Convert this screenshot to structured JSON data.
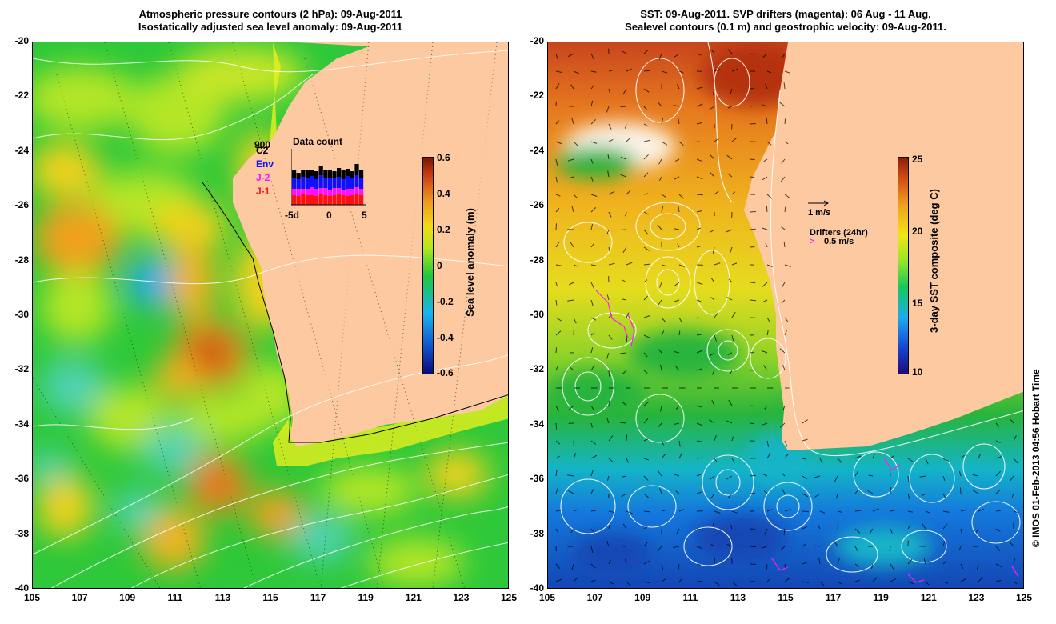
{
  "left_panel": {
    "title_line1": "Atmospheric pressure contours (2 hPa): 09-Aug-2011",
    "title_line2": "Isostatically adjusted sea level anomaly: 09-Aug-2011",
    "colorbar": {
      "label": "Sea level anomaly (m)",
      "range": [
        -0.6,
        0.6
      ],
      "ticks": [
        "0.6",
        "0.4",
        "0.2",
        "0",
        "-0.2",
        "-0.4",
        "-0.6"
      ]
    },
    "data_count": {
      "title": "Data count",
      "missions": [
        {
          "name": "C2",
          "overlap_label": "900",
          "color": "#000000"
        },
        {
          "name": "Env",
          "color": "#1010ff"
        },
        {
          "name": "J-2",
          "color": "#ff10ff"
        },
        {
          "name": "J-1",
          "color": "#ff1010"
        }
      ],
      "x_ticks": [
        "-5d",
        "0",
        "5"
      ]
    }
  },
  "right_panel": {
    "title_line1": "SST: 09-Aug-2011. SVP drifters (magenta): 06 Aug - 11 Aug.",
    "title_line2": "Sealevel contours (0.1 m) and geostrophic velocity: 09-Aug-2011.",
    "velocity_scale_label": "1 m/s",
    "drifters_title": "Drifters (24hr)",
    "drifters_scale_label": "0.5 m/s",
    "colorbar": {
      "label": "3-day SST composite (deg C)",
      "range": [
        10,
        25
      ],
      "ticks": [
        "25",
        "20",
        "15",
        "10"
      ]
    }
  },
  "axes": {
    "x_ticks": [
      "105",
      "107",
      "109",
      "111",
      "113",
      "115",
      "117",
      "119",
      "121",
      "123",
      "125"
    ],
    "y_ticks": [
      "-20",
      "-22",
      "-24",
      "-26",
      "-28",
      "-30",
      "-32",
      "-34",
      "-36",
      "-38",
      "-40"
    ],
    "lon_range": [
      105,
      125
    ],
    "lat_range": [
      -40,
      -20
    ]
  },
  "colors": {
    "land": "#fcc9a0",
    "contour": "#ffffff"
  },
  "credit": "© IMOS 01-Feb-2013 04:56 Hobart Time"
}
